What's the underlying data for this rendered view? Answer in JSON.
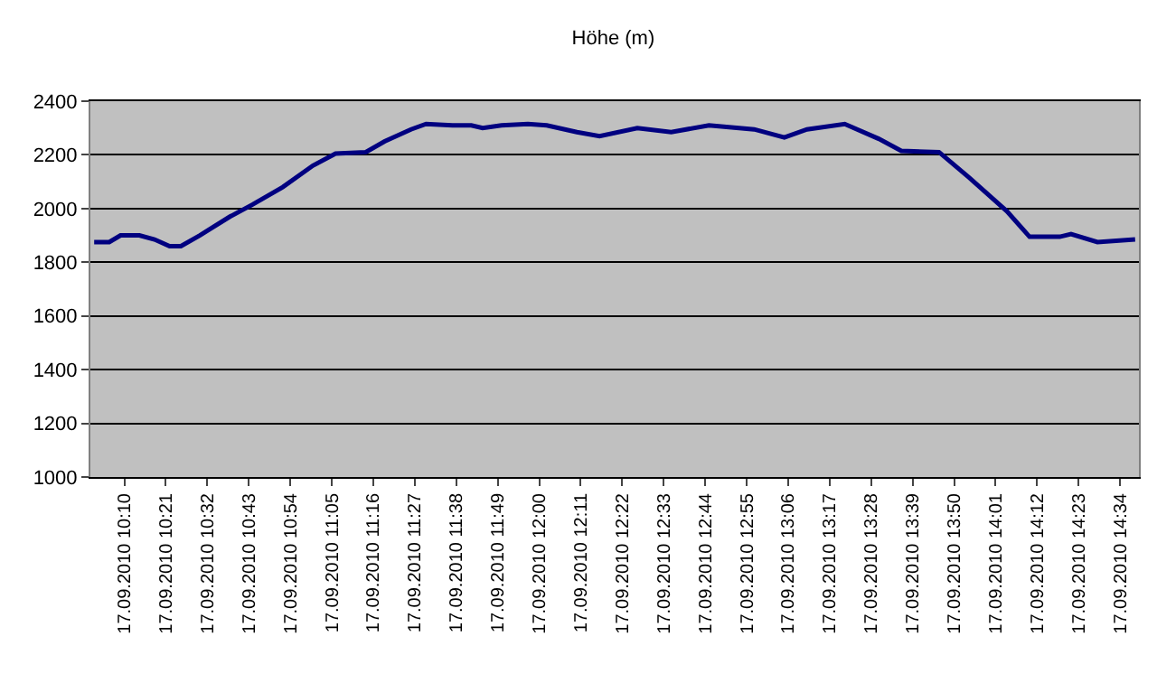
{
  "chart_data": {
    "type": "line",
    "title": "Höhe (m)",
    "x": [
      "2010-09-17T10:02",
      "2010-09-17T10:06",
      "2010-09-17T10:09",
      "2010-09-17T10:14",
      "2010-09-17T10:18",
      "2010-09-17T10:22",
      "2010-09-17T10:25",
      "2010-09-17T10:30",
      "2010-09-17T10:38",
      "2010-09-17T10:44",
      "2010-09-17T10:52",
      "2010-09-17T11:00",
      "2010-09-17T11:06",
      "2010-09-17T11:14",
      "2010-09-17T11:19",
      "2010-09-17T11:26",
      "2010-09-17T11:30",
      "2010-09-17T11:37",
      "2010-09-17T11:42",
      "2010-09-17T11:45",
      "2010-09-17T11:50",
      "2010-09-17T11:57",
      "2010-09-17T12:02",
      "2010-09-17T12:10",
      "2010-09-17T12:16",
      "2010-09-17T12:26",
      "2010-09-17T12:35",
      "2010-09-17T12:45",
      "2010-09-17T12:57",
      "2010-09-17T13:05",
      "2010-09-17T13:11",
      "2010-09-17T13:21",
      "2010-09-17T13:30",
      "2010-09-17T13:36",
      "2010-09-17T13:46",
      "2010-09-17T13:54",
      "2010-09-17T14:04",
      "2010-09-17T14:10",
      "2010-09-17T14:18",
      "2010-09-17T14:21",
      "2010-09-17T14:28",
      "2010-09-17T14:38"
    ],
    "series": [
      {
        "color": "#000080",
        "values": [
          1875,
          1875,
          1900,
          1900,
          1885,
          1860,
          1860,
          1900,
          1970,
          2015,
          2080,
          2160,
          2205,
          2210,
          2250,
          2295,
          2315,
          2310,
          2310,
          2300,
          2310,
          2315,
          2310,
          2285,
          2270,
          2300,
          2285,
          2310,
          2295,
          2265,
          2295,
          2315,
          2260,
          2215,
          2210,
          2115,
          1990,
          1895,
          1895,
          1905,
          1875,
          1885
        ]
      }
    ],
    "xlim": [
      "2010-09-17T10:01",
      "2010-09-17T14:39"
    ],
    "xticks": [
      {
        "value": "2010-09-17T10:10",
        "label": "17.09.2010 10:10"
      },
      {
        "value": "2010-09-17T10:21",
        "label": "17.09.2010 10:21"
      },
      {
        "value": "2010-09-17T10:32",
        "label": "17.09.2010 10:32"
      },
      {
        "value": "2010-09-17T10:43",
        "label": "17.09.2010 10:43"
      },
      {
        "value": "2010-09-17T10:54",
        "label": "17.09.2010 10:54"
      },
      {
        "value": "2010-09-17T11:05",
        "label": "17.09.2010 11:05"
      },
      {
        "value": "2010-09-17T11:16",
        "label": "17.09.2010 11:16"
      },
      {
        "value": "2010-09-17T11:27",
        "label": "17.09.2010 11:27"
      },
      {
        "value": "2010-09-17T11:38",
        "label": "17.09.2010 11:38"
      },
      {
        "value": "2010-09-17T11:49",
        "label": "17.09.2010 11:49"
      },
      {
        "value": "2010-09-17T12:00",
        "label": "17.09.2010 12:00"
      },
      {
        "value": "2010-09-17T12:11",
        "label": "17.09.2010 12:11"
      },
      {
        "value": "2010-09-17T12:22",
        "label": "17.09.2010 12:22"
      },
      {
        "value": "2010-09-17T12:33",
        "label": "17.09.2010 12:33"
      },
      {
        "value": "2010-09-17T12:44",
        "label": "17.09.2010 12:44"
      },
      {
        "value": "2010-09-17T12:55",
        "label": "17.09.2010 12:55"
      },
      {
        "value": "2010-09-17T13:06",
        "label": "17.09.2010 13:06"
      },
      {
        "value": "2010-09-17T13:17",
        "label": "17.09.2010 13:17"
      },
      {
        "value": "2010-09-17T13:28",
        "label": "17.09.2010 13:28"
      },
      {
        "value": "2010-09-17T13:39",
        "label": "17.09.2010 13:39"
      },
      {
        "value": "2010-09-17T13:50",
        "label": "17.09.2010 13:50"
      },
      {
        "value": "2010-09-17T14:01",
        "label": "17.09.2010 14:01"
      },
      {
        "value": "2010-09-17T14:12",
        "label": "17.09.2010 14:12"
      },
      {
        "value": "2010-09-17T14:23",
        "label": "17.09.2010 14:23"
      },
      {
        "value": "2010-09-17T14:34",
        "label": "17.09.2010 14:34"
      }
    ],
    "ylim": [
      1000,
      2400
    ],
    "yticks": [
      1000,
      1200,
      1400,
      1600,
      1800,
      2000,
      2200,
      2400
    ],
    "grid": "y",
    "marker": "none",
    "line_style": "solid"
  }
}
